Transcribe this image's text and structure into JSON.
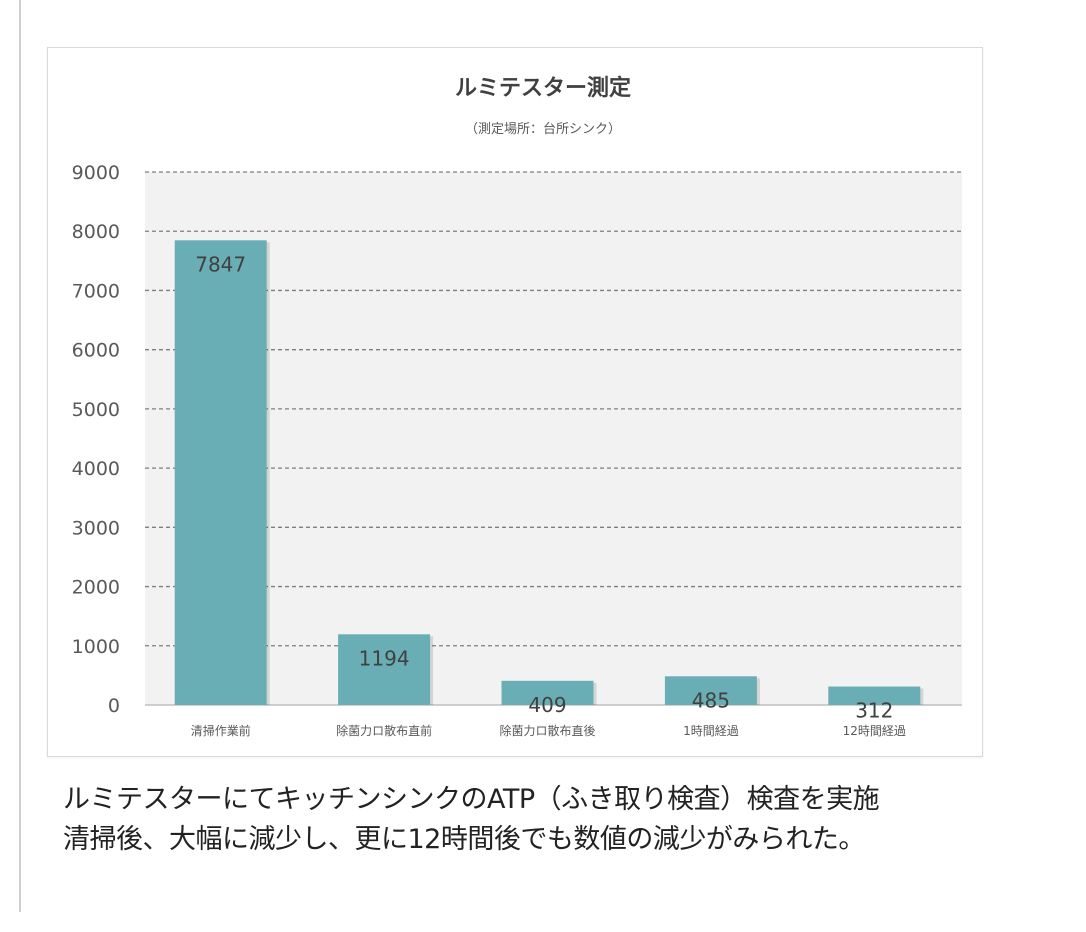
{
  "chart_data": {
    "type": "bar",
    "title": "ルミテスター測定",
    "subtitle": "（測定場所：台所シンク）",
    "categories": [
      "清掃作業前",
      "除菌力ロ散布直前",
      "除菌力ロ散布直後",
      "1時間経過",
      "12時間経過"
    ],
    "values": [
      7847,
      1194,
      409,
      485,
      312
    ],
    "data_labels": [
      "7847",
      "1194",
      "409",
      "485",
      "312"
    ],
    "ylim": [
      0,
      9000
    ],
    "yticks": [
      0,
      1000,
      2000,
      3000,
      4000,
      5000,
      6000,
      7000,
      8000,
      9000
    ],
    "ytick_labels": [
      "0",
      "1000",
      "2000",
      "3000",
      "4000",
      "5000",
      "6000",
      "7000",
      "8000",
      "9000"
    ],
    "xlabel": "",
    "ylabel": "",
    "grid": "horizontal dashed",
    "legend": "none",
    "colors": {
      "bar": "#6aaeb5",
      "plot_bg": "#f2f2f2",
      "grid": "#7f7f7f",
      "axis_text": "#595959",
      "label_text": "#404040"
    }
  },
  "caption": {
    "line1": "ルミテスターにてキッチンシンクのATP（ふき取り検査）検査を実施",
    "line2": "清掃後、大幅に減少し、更に12時間後でも数値の減少がみられた。"
  }
}
